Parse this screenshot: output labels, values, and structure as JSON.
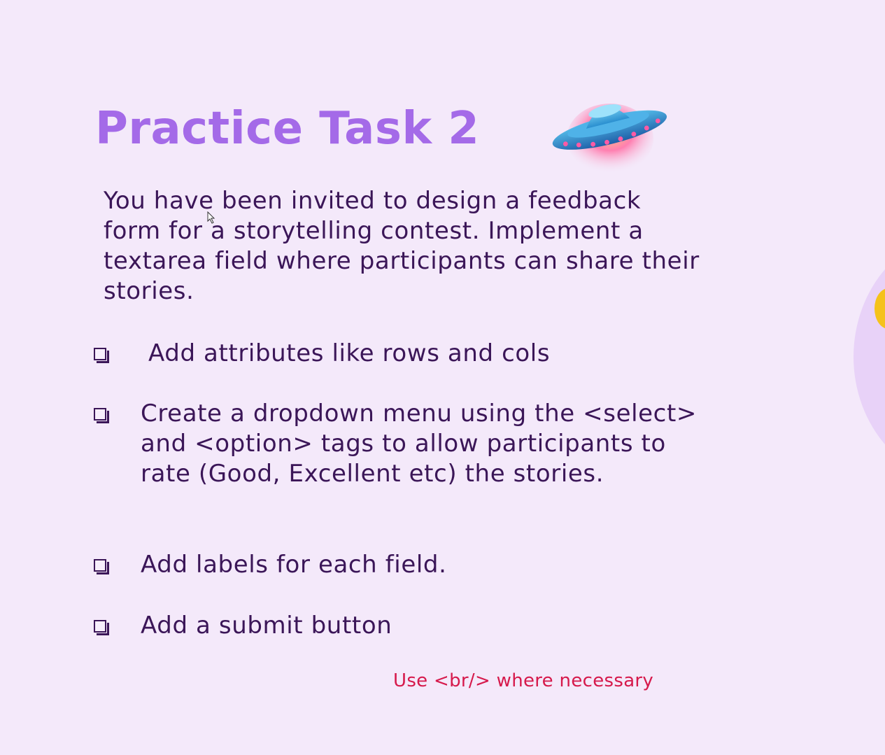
{
  "slide": {
    "title": "Practice Task 2",
    "intro": "You have been invited to design a feedback form for a storytelling contest. Implement a textarea field where participants can share their stories.",
    "tasks": [
      "Add attributes like rows and cols",
      "Create a dropdown menu using the <select> and <option> tags to allow participants to rate (Good, Excellent etc) the stories.",
      "Add labels for each field.",
      "Add a submit button"
    ],
    "note": "Use <br/> where necessary",
    "icons": {
      "decoration": "ufo-icon",
      "bullet": "checkbox-icon"
    },
    "colors": {
      "background": "#f4e9fa",
      "title": "#a46ae8",
      "body_text": "#3b1658",
      "note": "#d6194b",
      "accent_yellow": "#f5c21b"
    }
  }
}
